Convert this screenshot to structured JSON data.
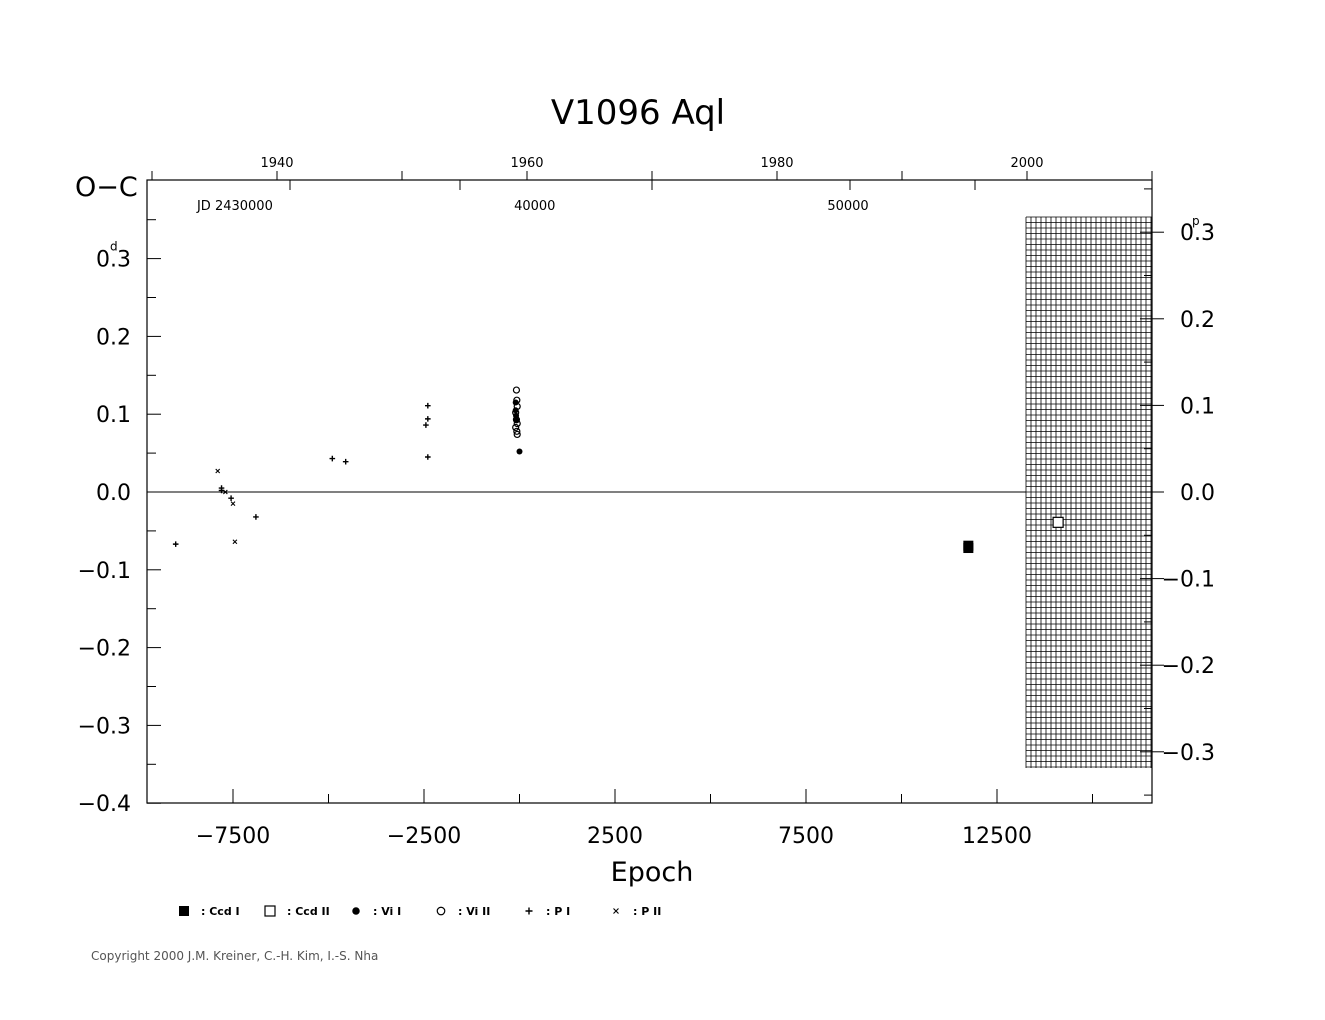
{
  "chart_data": {
    "type": "scatter",
    "title": "V1096  Aql",
    "xlabel": "Epoch",
    "ylabel": "O−C",
    "y_unit_mark": "d",
    "right_unit_mark": "p",
    "xlim": [
      -10000,
      16500
    ],
    "ylim": [
      -0.4,
      0.38
    ],
    "x_ticks": [
      -7500,
      -2500,
      2500,
      7500,
      12500
    ],
    "x_tick_labels": [
      "−7500",
      "−2500",
      "2500",
      "7500",
      "12500"
    ],
    "y_ticks": [
      0.3,
      0.2,
      0.1,
      0.0,
      -0.1,
      -0.2,
      -0.3,
      -0.4
    ],
    "y_tick_labels": [
      "0.3",
      "0.2",
      "0.1",
      "0.0",
      "−0.1",
      "−0.2",
      "−0.3",
      "−0.4"
    ],
    "y2_ticks": [
      0.3,
      0.2,
      0.1,
      0.0,
      -0.1,
      -0.2,
      -0.3
    ],
    "y2_tick_labels": [
      "0.3",
      "0.2",
      "0.1",
      "0.0",
      "−0.1",
      "−0.2",
      "−0.3"
    ],
    "top_years": [
      1940,
      1960,
      1980,
      2000
    ],
    "top_year_labels": [
      "1940",
      "1960",
      "1980",
      "2000"
    ],
    "jd_labels": [
      {
        "text": "JD  2430000",
        "epoch": -7450
      },
      {
        "text": "40000",
        "epoch": 400
      },
      {
        "text": "50000",
        "epoch": 8600
      }
    ],
    "zero_line": true,
    "series": [
      {
        "name": "Ccd I",
        "marker": "filled-square",
        "points": [
          [
            11750,
            -0.069
          ],
          [
            11750,
            -0.072
          ]
        ]
      },
      {
        "name": "Ccd II",
        "marker": "open-square",
        "points": [
          [
            14100,
            -0.039
          ]
        ]
      },
      {
        "name": "Vi I",
        "marker": "filled-circle",
        "points": [
          [
            -100,
            0.115
          ],
          [
            -100,
            0.105
          ],
          [
            -90,
            0.098
          ],
          [
            -80,
            0.092
          ],
          [
            0,
            0.052
          ]
        ]
      },
      {
        "name": "Vi II",
        "marker": "open-circle",
        "points": [
          [
            -80,
            0.131
          ],
          [
            -70,
            0.118
          ],
          [
            -60,
            0.11
          ],
          [
            -100,
            0.102
          ],
          [
            -80,
            0.093
          ],
          [
            -60,
            0.088
          ],
          [
            -100,
            0.083
          ],
          [
            -70,
            0.078
          ],
          [
            -60,
            0.074
          ]
        ]
      },
      {
        "name": "P I",
        "marker": "plus",
        "points": [
          [
            -9000,
            -0.067
          ],
          [
            -7800,
            0.005
          ],
          [
            -7800,
            0.002
          ],
          [
            -7550,
            -0.008
          ],
          [
            -6900,
            -0.032
          ],
          [
            -4900,
            0.043
          ],
          [
            -4550,
            0.039
          ],
          [
            -2400,
            0.111
          ],
          [
            -2400,
            0.094
          ],
          [
            -2450,
            0.086
          ],
          [
            -2400,
            0.045
          ]
        ]
      },
      {
        "name": "P II",
        "marker": "cross",
        "points": [
          [
            -7900,
            0.027
          ],
          [
            -7500,
            -0.015
          ],
          [
            -7700,
            0.0
          ],
          [
            -7450,
            -0.064
          ]
        ]
      }
    ],
    "legend": [
      {
        "label": ": Ccd  I",
        "marker": "filled-square"
      },
      {
        "label": ": Ccd  II",
        "marker": "open-square"
      },
      {
        "label": ": Vi  I",
        "marker": "filled-circle"
      },
      {
        "label": ": Vi  II",
        "marker": "open-circle"
      },
      {
        "label": ": P  I",
        "marker": "plus"
      },
      {
        "label": ": P  II",
        "marker": "cross"
      }
    ],
    "legend_placement": "bottom-left"
  },
  "copyright": "Copyright 2000 J.M. Kreiner, C.-H. Kim, I.-S. Nha"
}
